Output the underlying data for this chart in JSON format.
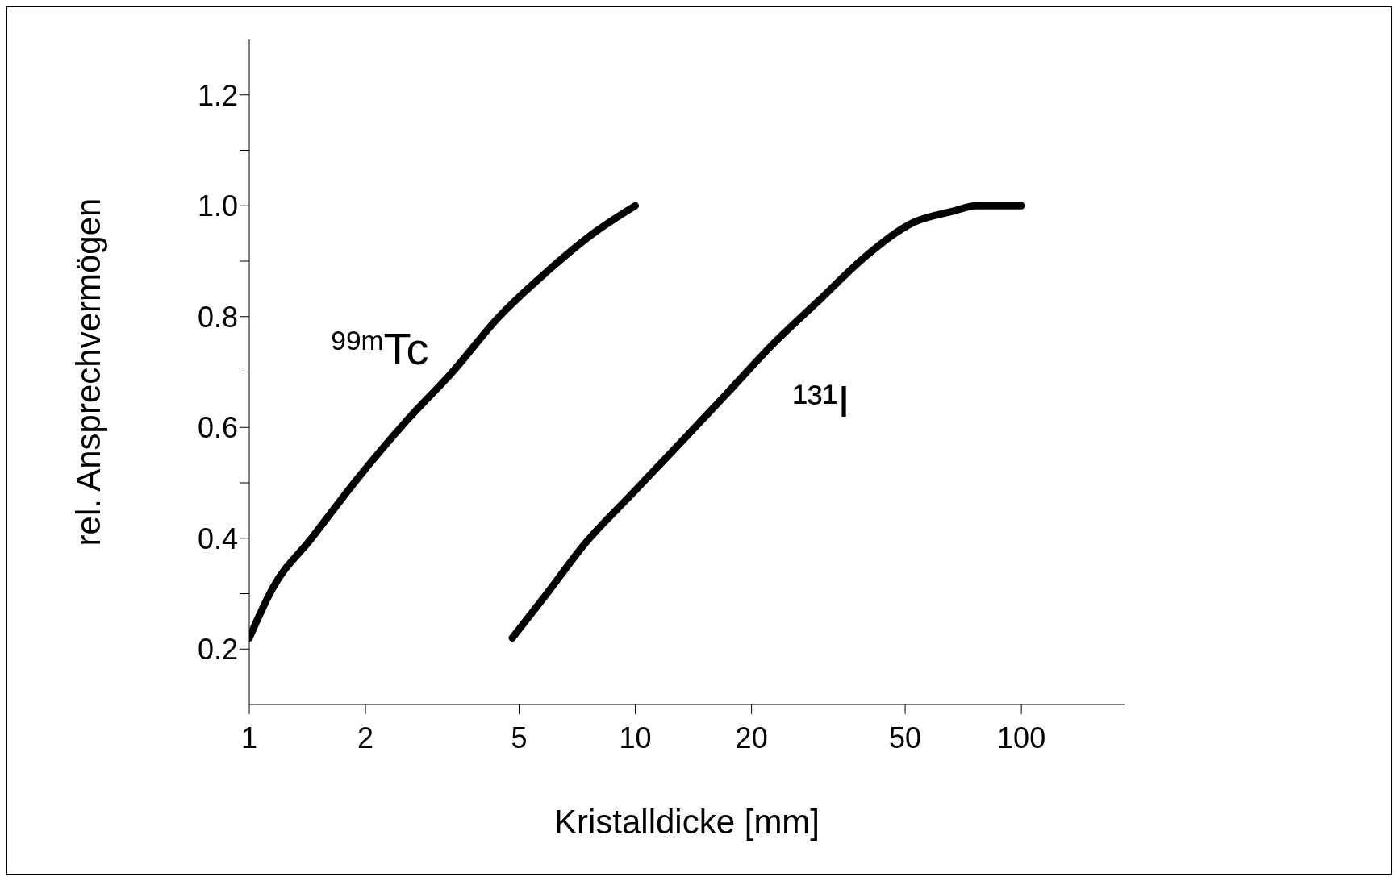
{
  "chart_data": {
    "type": "line",
    "xlabel": "Kristalldicke [mm]",
    "ylabel": "rel. Ansprechvermögen",
    "log": "x",
    "xlim": [
      1,
      185
    ],
    "xticks": [
      1,
      2,
      5,
      10,
      20,
      50,
      100
    ],
    "ylim": [
      0.1,
      1.3
    ],
    "yticks": [
      {
        "value": 0.2,
        "label": "0.2"
      },
      {
        "value": 0.3,
        "label": null
      },
      {
        "value": 0.4,
        "label": "0.4"
      },
      {
        "value": 0.5,
        "label": null
      },
      {
        "value": 0.6,
        "label": "0.6"
      },
      {
        "value": 0.7,
        "label": null
      },
      {
        "value": 0.8,
        "label": "0.8"
      },
      {
        "value": 0.9,
        "label": null
      },
      {
        "value": 1.0,
        "label": "1.0"
      },
      {
        "value": 1.1,
        "label": null
      },
      {
        "value": 1.2,
        "label": "1.2"
      }
    ],
    "grid": false,
    "legend": false,
    "marker": "none",
    "line_style": "solid",
    "series": [
      {
        "name": "$^{99m}$Tc",
        "color": "#000000",
        "x": [
          1,
          1.15,
          1.45,
          1.92,
          2.54,
          3.36,
          4.44,
          5.88,
          7.78,
          10
        ],
        "values": [
          0.22,
          0.31,
          0.4,
          0.51,
          0.61,
          0.7,
          0.8,
          0.88,
          0.95,
          1.0
        ]
      },
      {
        "name": "¹³¹I",
        "color": "#000000",
        "x": [
          4.8,
          5.9,
          7.4,
          9.8,
          13,
          17.2,
          22.7,
          30,
          39.7,
          52.6,
          66.4,
          76.6,
          100
        ],
        "values": [
          0.22,
          0.3,
          0.39,
          0.48,
          0.57,
          0.66,
          0.75,
          0.83,
          0.91,
          0.97,
          0.99,
          1.0,
          1.0
        ]
      }
    ]
  }
}
